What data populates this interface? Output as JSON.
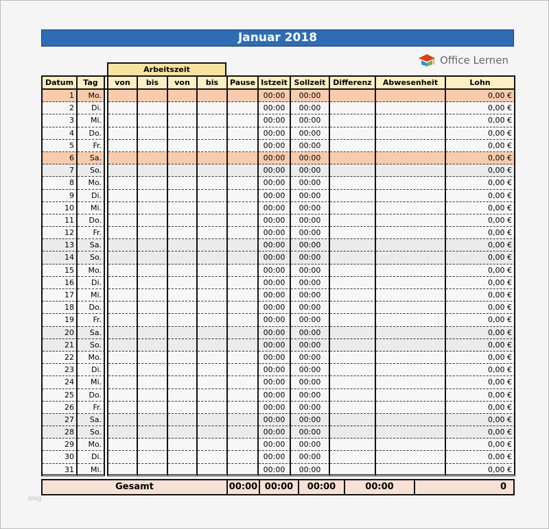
{
  "title": "Januar 2018",
  "logo": {
    "text": "Office Lernen",
    "colors": [
      "#d9411e",
      "#2e8fd8",
      "#6ab04c",
      "#f2b134"
    ]
  },
  "group_header": "Arbeitszeit",
  "columns": [
    "Datum",
    "Tag",
    "von",
    "bis",
    "von",
    "bis",
    "Pause",
    "Istzeit",
    "Sollzeit",
    "Differenz",
    "Abwesenheit",
    "Lohn"
  ],
  "row_colors": {
    "holiday": "#f8cbad",
    "weekend": "#ebebeb"
  },
  "rows": [
    {
      "d": "1",
      "t": "Mo.",
      "type": "holiday"
    },
    {
      "d": "2",
      "t": "Di."
    },
    {
      "d": "3",
      "t": "Mi."
    },
    {
      "d": "4",
      "t": "Do."
    },
    {
      "d": "5",
      "t": "Fr."
    },
    {
      "d": "6",
      "t": "Sa.",
      "type": "holiday"
    },
    {
      "d": "7",
      "t": "So.",
      "type": "weekend"
    },
    {
      "d": "8",
      "t": "Mo."
    },
    {
      "d": "9",
      "t": "Di."
    },
    {
      "d": "10",
      "t": "Mi."
    },
    {
      "d": "11",
      "t": "Do."
    },
    {
      "d": "12",
      "t": "Fr."
    },
    {
      "d": "13",
      "t": "Sa.",
      "type": "weekend"
    },
    {
      "d": "14",
      "t": "So.",
      "type": "weekend"
    },
    {
      "d": "15",
      "t": "Mo."
    },
    {
      "d": "16",
      "t": "Di."
    },
    {
      "d": "17",
      "t": "Mi."
    },
    {
      "d": "18",
      "t": "Do."
    },
    {
      "d": "19",
      "t": "Fr."
    },
    {
      "d": "20",
      "t": "Sa.",
      "type": "weekend"
    },
    {
      "d": "21",
      "t": "So.",
      "type": "weekend"
    },
    {
      "d": "22",
      "t": "Mo."
    },
    {
      "d": "23",
      "t": "Di."
    },
    {
      "d": "24",
      "t": "Mi."
    },
    {
      "d": "25",
      "t": "Do."
    },
    {
      "d": "26",
      "t": "Fr."
    },
    {
      "d": "27",
      "t": "Sa.",
      "type": "weekend"
    },
    {
      "d": "28",
      "t": "So.",
      "type": "weekend"
    },
    {
      "d": "29",
      "t": "Mo."
    },
    {
      "d": "30",
      "t": "Di."
    },
    {
      "d": "31",
      "t": "Mi."
    }
  ],
  "row_defaults": {
    "istzeit": "00:00",
    "sollzeit": "00:00",
    "lohn": "0,00 €"
  },
  "total": {
    "label": "Gesamt",
    "istzeit": "00:00",
    "sollzeit": "00:00",
    "differenz": "00:00",
    "abwesenheit": "00:00",
    "lohn": "0"
  },
  "watermark": "blog"
}
